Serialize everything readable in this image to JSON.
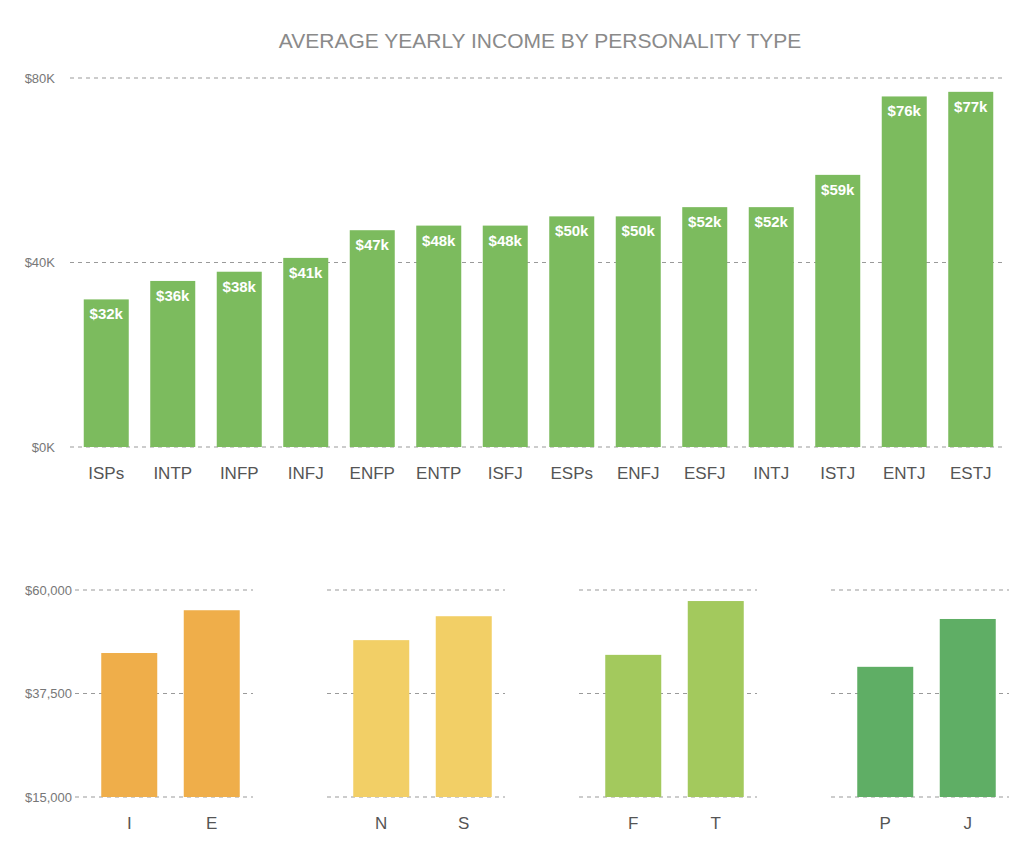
{
  "chart_data": [
    {
      "type": "bar",
      "title": "AVERAGE YEARLY INCOME BY PERSONALITY TYPE",
      "categories": [
        "ISPs",
        "INTP",
        "INFP",
        "INFJ",
        "ENFP",
        "ENTP",
        "ISFJ",
        "ESPs",
        "ENFJ",
        "ESFJ",
        "INTJ",
        "ISTJ",
        "ENTJ",
        "ESTJ"
      ],
      "values": [
        32000,
        36000,
        38000,
        41000,
        47000,
        48000,
        48000,
        50000,
        50000,
        52000,
        52000,
        59000,
        76000,
        77000
      ],
      "value_labels": [
        "$32k",
        "$36k",
        "$38k",
        "$41k",
        "$47k",
        "$48k",
        "$48k",
        "$50k",
        "$50k",
        "$52k",
        "$52k",
        "$59k",
        "$76k",
        "$77k"
      ],
      "color": "#7cbb5e",
      "data_labels": true,
      "grid": true,
      "ylim": [
        0,
        80000
      ],
      "yticks": [
        {
          "value": 0,
          "label": "$0K"
        },
        {
          "value": 40000,
          "label": "$40K"
        },
        {
          "value": 80000,
          "label": "$80K"
        }
      ]
    },
    {
      "type": "bar",
      "categories": [
        "I",
        "E"
      ],
      "values": [
        46300,
        55600
      ],
      "color": "#efae4a",
      "grid": true,
      "ylim": [
        15000,
        60000
      ],
      "yticks": [
        {
          "value": 15000,
          "label": "$15,000"
        },
        {
          "value": 37500,
          "label": "$37,500"
        },
        {
          "value": 60000,
          "label": "$60,000"
        }
      ]
    },
    {
      "type": "bar",
      "categories": [
        "N",
        "S"
      ],
      "values": [
        49100,
        54300
      ],
      "color": "#f2cf66",
      "grid": true,
      "tick_labels": "x",
      "ylim": [
        15000,
        60000
      ],
      "yticks": [
        {
          "value": 15000,
          "label": "$15,000"
        },
        {
          "value": 37500,
          "label": "$37,500"
        },
        {
          "value": 60000,
          "label": "$60,000"
        }
      ]
    },
    {
      "type": "bar",
      "categories": [
        "F",
        "T"
      ],
      "values": [
        45900,
        57600
      ],
      "color": "#a3c95d",
      "grid": true,
      "tick_labels": "x",
      "ylim": [
        15000,
        60000
      ],
      "yticks": [
        {
          "value": 15000,
          "label": "$15,000"
        },
        {
          "value": 37500,
          "label": "$37,500"
        },
        {
          "value": 60000,
          "label": "$60,000"
        }
      ]
    },
    {
      "type": "bar",
      "categories": [
        "P",
        "J"
      ],
      "values": [
        43300,
        53700
      ],
      "color": "#5fae65",
      "grid": true,
      "tick_labels": "x",
      "ylim": [
        15000,
        60000
      ],
      "yticks": [
        {
          "value": 15000,
          "label": "$15,000"
        },
        {
          "value": 37500,
          "label": "$37,500"
        },
        {
          "value": 60000,
          "label": "$60,000"
        }
      ]
    }
  ]
}
